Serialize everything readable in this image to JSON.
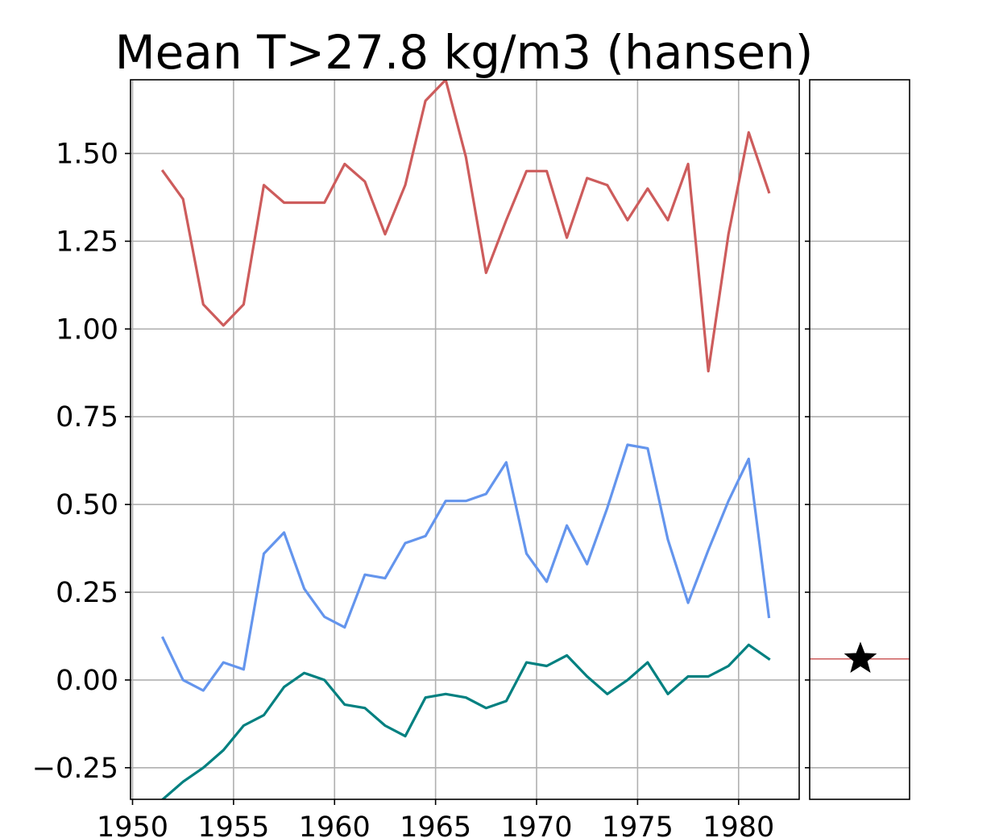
{
  "chart_data": {
    "type": "line",
    "title": "Mean T>27.8 kg/m3 (hansen)",
    "xlabel": "",
    "ylabel": "",
    "xlim": [
      1949.9,
      1983.0
    ],
    "ylim": [
      -0.34,
      1.71
    ],
    "grid": true,
    "x_ticks": [
      "1950",
      "1955",
      "1960",
      "1965",
      "1970",
      "1975",
      "1980"
    ],
    "y_ticks": [
      "−0.25",
      "0.00",
      "0.25",
      "0.50",
      "0.75",
      "1.00",
      "1.25",
      "1.50"
    ],
    "x": [
      1951.5,
      1952.5,
      1953.5,
      1954.5,
      1955.5,
      1956.5,
      1957.5,
      1958.5,
      1959.5,
      1960.5,
      1961.5,
      1962.5,
      1963.5,
      1964.5,
      1965.5,
      1966.5,
      1967.5,
      1968.5,
      1969.5,
      1970.5,
      1971.5,
      1972.5,
      1973.5,
      1974.5,
      1975.5,
      1976.5,
      1977.5,
      1978.5,
      1979.5,
      1980.5,
      1981.5
    ],
    "series": [
      {
        "color": "#cd5c5c",
        "values": [
          1.45,
          1.37,
          1.07,
          1.01,
          1.07,
          1.41,
          1.36,
          1.36,
          1.36,
          1.47,
          1.42,
          1.27,
          1.41,
          1.65,
          1.71,
          1.49,
          1.16,
          1.31,
          1.45,
          1.45,
          1.26,
          1.43,
          1.41,
          1.31,
          1.4,
          1.31,
          1.47,
          0.88,
          1.27,
          1.56,
          1.39
        ]
      },
      {
        "color": "#6495ed",
        "values": [
          0.12,
          0.0,
          -0.03,
          0.05,
          0.03,
          0.36,
          0.42,
          0.26,
          0.18,
          0.15,
          0.3,
          0.29,
          0.39,
          0.41,
          0.51,
          0.51,
          0.53,
          0.62,
          0.36,
          0.28,
          0.44,
          0.33,
          0.49,
          0.67,
          0.66,
          0.4,
          0.22,
          0.37,
          0.51,
          0.63,
          0.18
        ]
      },
      {
        "color": "#008080",
        "values": [
          -0.34,
          -0.29,
          -0.25,
          -0.2,
          -0.13,
          -0.1,
          -0.02,
          0.02,
          0.0,
          -0.07,
          -0.08,
          -0.13,
          -0.16,
          -0.05,
          -0.04,
          -0.05,
          -0.08,
          -0.06,
          0.05,
          0.04,
          0.07,
          0.01,
          -0.04,
          0.0,
          0.05,
          -0.04,
          0.01,
          0.01,
          0.04,
          0.1,
          0.06
        ]
      }
    ],
    "side_panel": {
      "reference_value": 0.06,
      "reference_color": "#cd5c5c",
      "marker": "star",
      "marker_color": "#000000"
    }
  }
}
